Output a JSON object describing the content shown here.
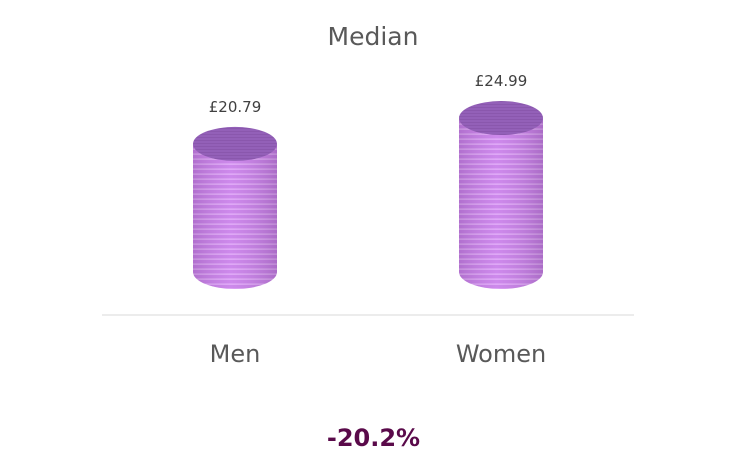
{
  "chart_data": {
    "type": "bar",
    "style": "3d-cylinder",
    "title": "Median",
    "categories": [
      "Men",
      "Women"
    ],
    "values": [
      20.79,
      24.99
    ],
    "data_labels": [
      "£20.79",
      "£24.99"
    ],
    "unit": "£",
    "grid": false,
    "legend": "none",
    "colors": {
      "body": "#c97fea",
      "stripe": "#eab8ff",
      "top": "#9360b8",
      "baseline": "#d9d9d9"
    }
  },
  "footer": {
    "difference": "-20.2%",
    "color": "#5a0a4a"
  }
}
